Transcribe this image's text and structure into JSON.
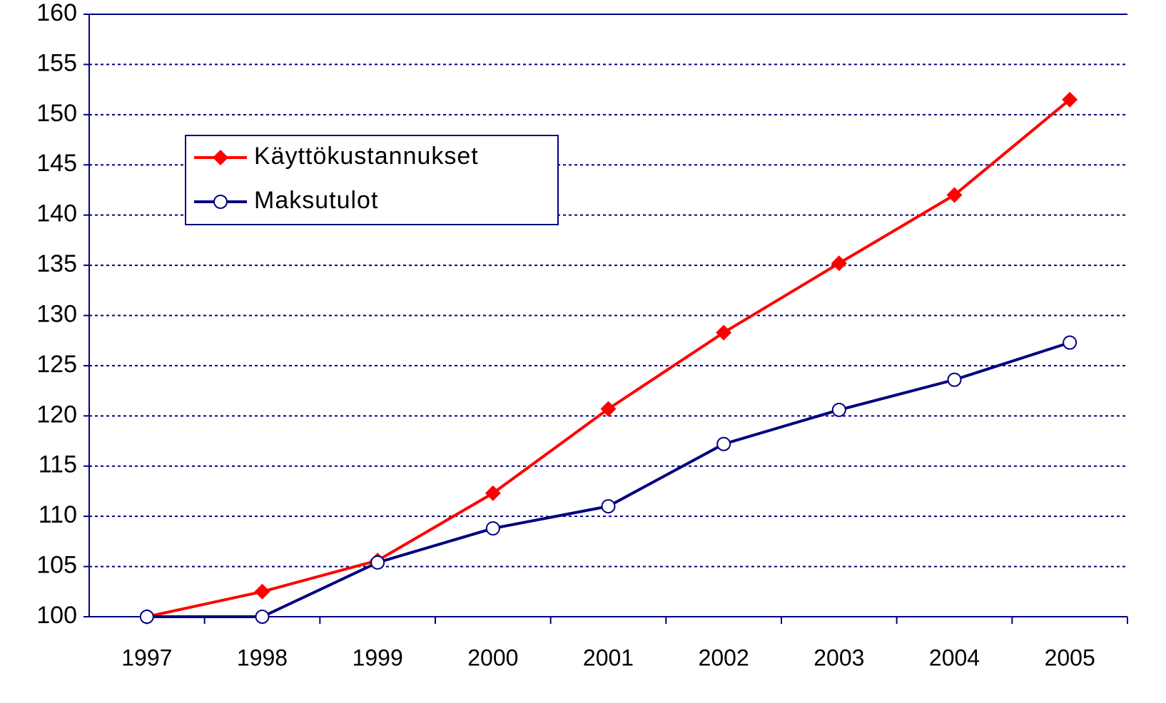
{
  "chart_data": {
    "type": "line",
    "categories": [
      "1997",
      "1998",
      "1999",
      "2000",
      "2001",
      "2002",
      "2003",
      "2004",
      "2005"
    ],
    "series": [
      {
        "name": "Käyttökustannukset",
        "color": "#ff0000",
        "marker": "diamond",
        "values": [
          100,
          102.5,
          105.6,
          112.3,
          120.7,
          128.3,
          135.2,
          142.0,
          151.5
        ]
      },
      {
        "name": "Maksutulot",
        "color": "#000080",
        "marker": "circle",
        "values": [
          100,
          100,
          105.4,
          108.8,
          111.0,
          117.2,
          120.6,
          123.6,
          127.3
        ]
      }
    ],
    "ylim": [
      100,
      160
    ],
    "yticks": [
      100,
      105,
      110,
      115,
      120,
      125,
      130,
      135,
      140,
      145,
      150,
      155,
      160
    ],
    "grid": true,
    "legend": "upper left"
  }
}
